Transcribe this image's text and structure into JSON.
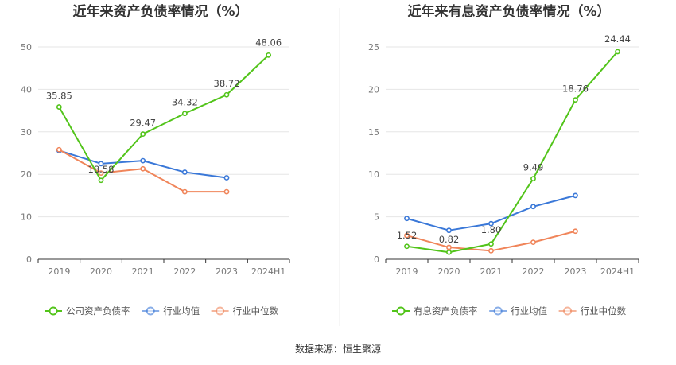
{
  "source_text": "数据来源：恒生聚源",
  "chart_data": [
    {
      "type": "line",
      "title": "近年来资产负债率情况（%）",
      "categories": [
        "2019",
        "2020",
        "2021",
        "2022",
        "2023",
        "2024H1"
      ],
      "ylim": [
        0,
        50
      ],
      "yticks": [
        0,
        10,
        20,
        30,
        40,
        50
      ],
      "grid": true,
      "legend_position": "bottom",
      "series": [
        {
          "name": "公司资产负债率",
          "color": "#52c41a",
          "values": [
            35.85,
            18.58,
            29.47,
            34.32,
            38.72,
            48.06
          ],
          "labels": [
            "35.85",
            "18.58",
            "29.47",
            "34.32",
            "38.72",
            "48.06"
          ]
        },
        {
          "name": "行业均值",
          "color": "#3a78d8",
          "values": [
            25.6,
            22.5,
            23.2,
            20.5,
            19.2,
            null
          ],
          "labels": []
        },
        {
          "name": "行业中位数",
          "color": "#f0855a",
          "values": [
            25.8,
            20.3,
            21.3,
            15.9,
            15.9,
            null
          ],
          "labels": []
        }
      ]
    },
    {
      "type": "line",
      "title": "近年来有息资产负债率情况（%）",
      "categories": [
        "2019",
        "2020",
        "2021",
        "2022",
        "2023",
        "2024H1"
      ],
      "ylim": [
        0,
        25
      ],
      "yticks": [
        0,
        5,
        10,
        15,
        20,
        25
      ],
      "grid": true,
      "legend_position": "bottom",
      "series": [
        {
          "name": "有息资产负债率",
          "color": "#52c41a",
          "values": [
            1.52,
            0.82,
            1.8,
            9.49,
            18.76,
            24.44
          ],
          "labels": [
            "1.52",
            "0.82",
            "1.80",
            "9.49",
            "18.76",
            "24.44"
          ]
        },
        {
          "name": "行业均值",
          "color": "#3a78d8",
          "values": [
            4.8,
            3.4,
            4.2,
            6.2,
            7.5,
            null
          ],
          "labels": []
        },
        {
          "name": "行业中位数",
          "color": "#f0855a",
          "values": [
            2.8,
            1.4,
            1.0,
            2.0,
            3.3,
            null
          ],
          "labels": []
        }
      ]
    }
  ]
}
